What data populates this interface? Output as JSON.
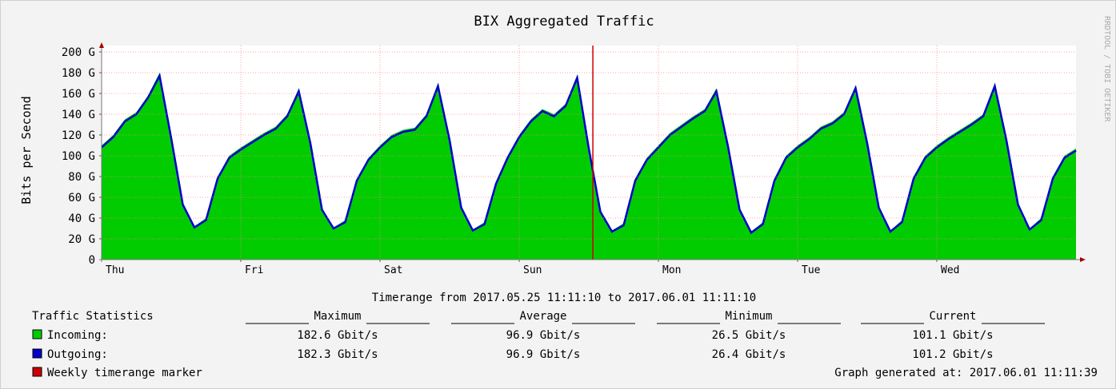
{
  "chart_data": {
    "type": "area",
    "title": "BIX Aggregated Traffic",
    "ylabel": "Bits per Second",
    "side_text": "RRDTOOL / TOBI OETIKER",
    "x": [
      0,
      2,
      4,
      6,
      8,
      10,
      12,
      14,
      16,
      18,
      20,
      22,
      24,
      26,
      28,
      30,
      32,
      34,
      36,
      38,
      40,
      42,
      44,
      46,
      48,
      50,
      52,
      54,
      56,
      58,
      60,
      62,
      64,
      66,
      68,
      70,
      72,
      74,
      76,
      78,
      80,
      82,
      84,
      86,
      88,
      90,
      92,
      94,
      96,
      98,
      100,
      102,
      104,
      106,
      108,
      110,
      112,
      114,
      116,
      118,
      120,
      122,
      124,
      126,
      128,
      130,
      132,
      134,
      136,
      138,
      140,
      142,
      144,
      146,
      148,
      150,
      152,
      154,
      156,
      158,
      160,
      162,
      164,
      166,
      168
    ],
    "xlim": [
      0,
      168
    ],
    "xticks": [
      {
        "value": 0,
        "label": "Thu"
      },
      {
        "value": 24,
        "label": "Fri"
      },
      {
        "value": 48,
        "label": "Sat"
      },
      {
        "value": 72,
        "label": "Sun"
      },
      {
        "value": 96,
        "label": "Mon"
      },
      {
        "value": 120,
        "label": "Tue"
      },
      {
        "value": 144,
        "label": "Wed"
      }
    ],
    "ylim": [
      0,
      200
    ],
    "yticks": [
      0,
      {
        "value": 20,
        "label": "20 G"
      },
      {
        "value": 40,
        "label": "40 G"
      },
      {
        "value": 60,
        "label": "60 G"
      },
      {
        "value": 80,
        "label": "80 G"
      },
      {
        "value": 100,
        "label": "100 G"
      },
      {
        "value": 120,
        "label": "120 G"
      },
      {
        "value": 140,
        "label": "140 G"
      },
      {
        "value": 160,
        "label": "160 G"
      },
      {
        "value": 180,
        "label": "180 G"
      },
      {
        "value": 200,
        "label": "200 G"
      }
    ],
    "grid": true,
    "series": [
      {
        "name": "Incoming:",
        "color": "#00cc00",
        "style": "area",
        "stats": [
          "182.6 Gbit/s",
          "96.9 Gbit/s",
          "26.5 Gbit/s",
          "101.1 Gbit/s"
        ],
        "values": [
          110,
          120,
          135,
          142,
          158,
          180,
          120,
          55,
          32,
          40,
          80,
          100,
          108,
          115,
          122,
          128,
          140,
          165,
          115,
          50,
          31,
          38,
          78,
          98,
          110,
          120,
          125,
          127,
          140,
          170,
          118,
          52,
          29,
          36,
          75,
          100,
          120,
          135,
          145,
          140,
          150,
          178,
          110,
          48,
          28,
          35,
          78,
          98,
          110,
          122,
          130,
          138,
          145,
          165,
          112,
          50,
          27,
          36,
          78,
          100,
          110,
          118,
          128,
          133,
          142,
          168,
          115,
          52,
          28,
          38,
          80,
          100,
          110,
          118,
          125,
          132,
          140,
          170,
          118,
          55,
          30,
          40,
          80,
          100,
          107
        ]
      },
      {
        "name": "Outgoing:",
        "color": "#0000cc",
        "style": "line",
        "stats": [
          "182.3 Gbit/s",
          "96.9 Gbit/s",
          "26.4 Gbit/s",
          "101.2 Gbit/s"
        ],
        "values": [
          108,
          118,
          133,
          140,
          156,
          177,
          117,
          53,
          31,
          38,
          78,
          98,
          106,
          113,
          120,
          126,
          138,
          162,
          112,
          48,
          30,
          36,
          76,
          96,
          108,
          118,
          123,
          125,
          138,
          167,
          115,
          50,
          28,
          34,
          73,
          98,
          118,
          133,
          143,
          138,
          148,
          175,
          107,
          46,
          27,
          33,
          76,
          96,
          108,
          120,
          128,
          136,
          143,
          162,
          109,
          48,
          26,
          34,
          76,
          98,
          108,
          116,
          126,
          131,
          140,
          165,
          112,
          50,
          27,
          36,
          78,
          98,
          108,
          116,
          123,
          130,
          138,
          167,
          115,
          53,
          29,
          38,
          78,
          98,
          105
        ]
      }
    ],
    "marker": {
      "name": "Weekly timerange marker",
      "color": "#cc0000",
      "x": 84.7
    },
    "timerange": "Timerange from 2017.05.25 11:11:10 to 2017.06.01 11:11:10",
    "stats_title": "Traffic Statistics",
    "stats_headers": [
      "Maximum",
      "Average",
      "Minimum",
      "Current"
    ],
    "generated": "Graph generated at: 2017.06.01 11:11:39"
  }
}
